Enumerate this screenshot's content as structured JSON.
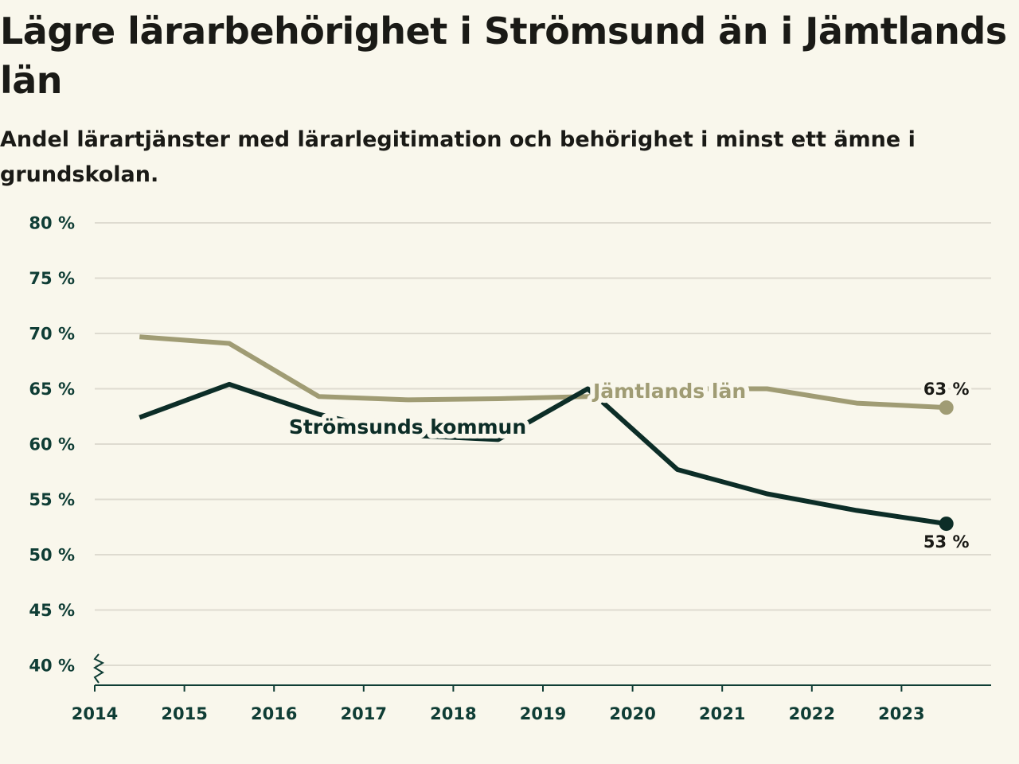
{
  "chart_data": {
    "type": "line",
    "title": "Lägre lärarbehörighet i Strömsund än i Jämtlands län",
    "subtitle": "Andel lärartjänster med lärarlegitimation och behörighet i minst ett ämne i grundskolan.",
    "xlabel": "",
    "ylabel": "",
    "x_ticks": [
      "2014",
      "2015",
      "2016",
      "2017",
      "2018",
      "2019",
      "2020",
      "2021",
      "2022",
      "2023"
    ],
    "y_ticks": [
      "40 %",
      "45 %",
      "50 %",
      "55 %",
      "60 %",
      "65 %",
      "70 %",
      "75 %",
      "80 %"
    ],
    "y_tick_values": [
      40,
      45,
      50,
      55,
      60,
      65,
      70,
      75,
      80
    ],
    "ylim": [
      40,
      80
    ],
    "xlim": [
      2014,
      2024
    ],
    "grid": true,
    "x": [
      2014.5,
      2015.5,
      2016.5,
      2017.5,
      2018.5,
      2019.5,
      2020.5,
      2021.5,
      2022.5,
      2023.5
    ],
    "series": [
      {
        "name": "Jämtlands län",
        "color": "#a09c74",
        "values": [
          69.7,
          69.1,
          64.3,
          64.0,
          64.1,
          64.3,
          65.0,
          65.0,
          63.7,
          63.3
        ],
        "end_label": "63 %"
      },
      {
        "name": "Strömsunds kommun",
        "color": "#0c2d27",
        "values": [
          62.4,
          65.4,
          62.7,
          60.8,
          60.4,
          65.0,
          57.7,
          55.5,
          54.0,
          52.8
        ],
        "end_label": "53 %"
      }
    ]
  }
}
